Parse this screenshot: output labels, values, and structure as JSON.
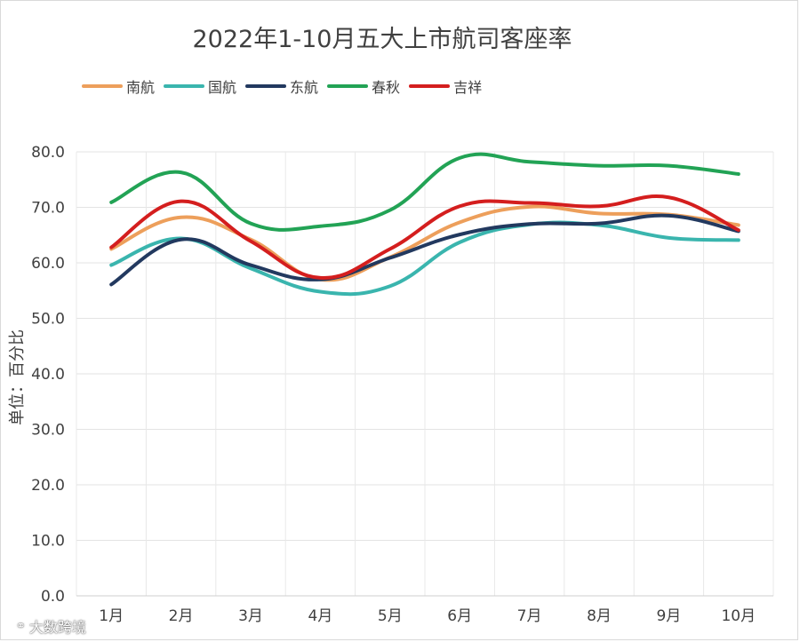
{
  "chart_data": {
    "type": "line",
    "title": "2022年1-10月五大上市航司客座率",
    "ylabel": "单位：百分比",
    "xlabel": "",
    "categories": [
      "1月",
      "2月",
      "3月",
      "4月",
      "5月",
      "6月",
      "7月",
      "8月",
      "9月",
      "10月"
    ],
    "yticks": [
      "0.0",
      "10.0",
      "20.0",
      "30.0",
      "40.0",
      "50.0",
      "60.0",
      "70.0",
      "80.0"
    ],
    "ylim": [
      0,
      80
    ],
    "grid": true,
    "legend_position": "top-left",
    "series": [
      {
        "name": "南航",
        "color": "#ED9F5B",
        "values": [
          62.5,
          68.2,
          64.2,
          57.0,
          61.0,
          67.3,
          70.1,
          68.9,
          68.7,
          66.8
        ]
      },
      {
        "name": "国航",
        "color": "#3AB5AE",
        "values": [
          59.6,
          64.4,
          59.0,
          54.8,
          55.8,
          63.7,
          66.9,
          66.8,
          64.5,
          64.1
        ]
      },
      {
        "name": "东航",
        "color": "#22395F",
        "values": [
          56.1,
          64.2,
          59.6,
          57.0,
          60.9,
          65.1,
          67.0,
          67.1,
          68.5,
          65.7
        ]
      },
      {
        "name": "春秋",
        "color": "#22A355",
        "values": [
          70.9,
          76.3,
          67.1,
          66.6,
          69.5,
          78.9,
          78.2,
          77.5,
          77.5,
          76.0
        ]
      },
      {
        "name": "吉祥",
        "color": "#D41E1E",
        "values": [
          62.8,
          71.1,
          63.9,
          57.3,
          62.5,
          70.2,
          70.8,
          70.2,
          71.8,
          65.9
        ]
      }
    ]
  },
  "watermark": {
    "icon": "logo-icon",
    "text": "大数跨境"
  }
}
